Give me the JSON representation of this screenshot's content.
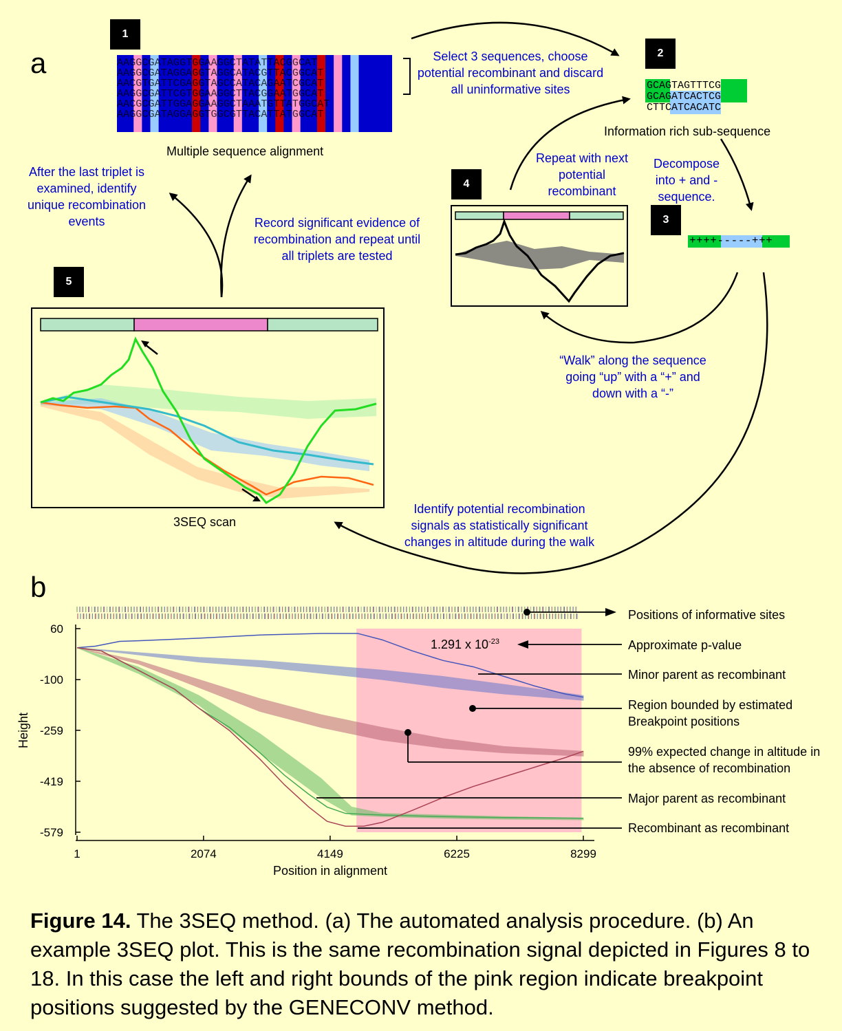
{
  "panel_a": {
    "letter": "a",
    "steps": {
      "s1": "1",
      "s2": "2",
      "s3": "3",
      "s4": "4",
      "s5": "5"
    },
    "alignment_label": "Multiple sequence alignment",
    "alignment_rows": [
      "AAGGCGATAGGTGGAAGGCTATATTACGGCAT",
      "AAGGCGATAGGAGGTAGGCATACGTTACGGCAT",
      "AACGTGATTCGAGGTAGCCATACAGAATCGCAT",
      "AAGGCGATTCGTGGAAGGCTTACGGAATGGCAT",
      "AACGCGATTGGAGGAAGGCTAAATGTTATGGCAT",
      "AAGGCGATAGGAGGTGGCGTTACATTATGGCAT"
    ],
    "select_note": "Select 3 sequences, choose potential recombinant and discard all uninformative sites",
    "sub_rows": [
      "GCAGTAGTTTCG",
      "GCAGATCACTCG",
      "CTTCATCACATC"
    ],
    "subseq_label": "Information rich sub-sequence",
    "decompose_note": "Decompose into + and - sequence.",
    "plusminus": "++++-----+++",
    "repeat_note": "Repeat with next potential recombinant",
    "walk_note": "“Walk” along the sequence going “up” with a “+” and down with a “-”",
    "identify_note": "Identify potential  recombination signals as statistically significant changes in altitude during the walk",
    "record_note": "Record significant evidence of recombination and repeat until all triplets are tested",
    "after_note": "After the last triplet is examined, identify unique recombination events",
    "scan_label": "3SEQ scan",
    "colors": {
      "blue": "#0000CC",
      "pink": "#FF99CC",
      "light_blue": "#99CCFF",
      "red": "#CC0000",
      "green": "#00CC33"
    }
  },
  "panel_b": {
    "letter": "b",
    "pvalue_base": "1.291 x 10",
    "pvalue_exp": "-23",
    "annotations": {
      "informative": "Positions of informative sites",
      "pvalue": "Approximate p-value",
      "minor": "Minor parent as recombinant",
      "region": "Region bounded by estimated Breakpoint positions",
      "expected": "99% expected change in altitude in the absence of recombination",
      "major": "Major parent as recombinant",
      "recomb": "Recombinant as recombinant"
    }
  },
  "chart_data": {
    "type": "line",
    "xlabel": "Position in alignment",
    "ylabel": "Height",
    "xticks": [
      "1",
      "2074",
      "4149",
      "6225",
      "8299"
    ],
    "yticks": [
      "60",
      "-100",
      "-259",
      "-419",
      "-579"
    ],
    "xlim": [
      1,
      8299
    ],
    "ylim": [
      -579,
      60
    ],
    "breakpoint_region": [
      4580,
      8270
    ],
    "series": [
      {
        "name": "Minor parent as recombinant",
        "color": "#4455BB",
        "x": [
          1,
          300,
          700,
          1000,
          2000,
          3000,
          4000,
          4600,
          5000,
          5500,
          6000,
          6500,
          7000,
          7500,
          8000,
          8299
        ],
        "y": [
          0,
          5,
          20,
          22,
          30,
          40,
          45,
          45,
          25,
          -10,
          -40,
          -60,
          -90,
          -120,
          -145,
          -155
        ]
      },
      {
        "name": "Major parent as recombinant",
        "color": "#44AA55",
        "x": [
          1,
          400,
          800,
          1200,
          1600,
          2000,
          2500,
          3000,
          3400,
          3800,
          4100,
          4400,
          5000,
          6000,
          7000,
          8299
        ],
        "y": [
          0,
          -10,
          -50,
          -90,
          -130,
          -190,
          -250,
          -330,
          -400,
          -460,
          -500,
          -520,
          -525,
          -530,
          -533,
          -535
        ]
      },
      {
        "name": "Recombinant as recombinant",
        "color": "#AA4455",
        "x": [
          1,
          400,
          800,
          1200,
          1600,
          2000,
          2500,
          3000,
          3400,
          3800,
          4100,
          4400,
          4700,
          5000,
          5500,
          6000,
          6500,
          7000,
          7500,
          8000,
          8299
        ],
        "y": [
          0,
          -10,
          -50,
          -90,
          -130,
          -190,
          -260,
          -350,
          -430,
          -500,
          -545,
          -560,
          -560,
          -548,
          -510,
          -470,
          -435,
          -405,
          -375,
          -345,
          -325
        ]
      }
    ],
    "expected_bands": [
      {
        "name": "Minor parent band",
        "color": "#6677CC",
        "x": [
          1,
          1000,
          2000,
          3000,
          4000,
          5000,
          6000,
          7000,
          8299
        ],
        "upper": [
          0,
          -15,
          -30,
          -40,
          -55,
          -70,
          -90,
          -115,
          -150
        ],
        "lower": [
          0,
          -22,
          -45,
          -60,
          -80,
          -100,
          -125,
          -145,
          -165
        ]
      },
      {
        "name": "Recombinant band",
        "color": "#BB6677",
        "x": [
          1,
          1000,
          2000,
          3000,
          4000,
          5000,
          6000,
          7000,
          8299
        ],
        "upper": [
          0,
          -40,
          -100,
          -160,
          -210,
          -250,
          -285,
          -310,
          -325
        ],
        "lower": [
          0,
          -50,
          -125,
          -200,
          -250,
          -290,
          -315,
          -330,
          -340
        ]
      },
      {
        "name": "Major parent band",
        "color": "#66BB66",
        "x": [
          1,
          1000,
          2000,
          3000,
          3500,
          4000,
          4500,
          5000,
          6000,
          7000,
          8299
        ],
        "upper": [
          0,
          -60,
          -150,
          -270,
          -340,
          -410,
          -500,
          -520,
          -525,
          -530,
          -535
        ],
        "lower": [
          0,
          -80,
          -180,
          -330,
          -400,
          -470,
          -525,
          -530,
          -535,
          -538,
          -540
        ]
      }
    ]
  },
  "caption": {
    "label": "Figure 14.",
    "text": "  The 3SEQ method. (a) The automated analysis procedure. (b) An example 3SEQ plot.  This is the same recombination signal depicted in Figures 8 to 18. In this case the left and right bounds of the pink region indicate breakpoint positions suggested by the GENECONV method."
  }
}
